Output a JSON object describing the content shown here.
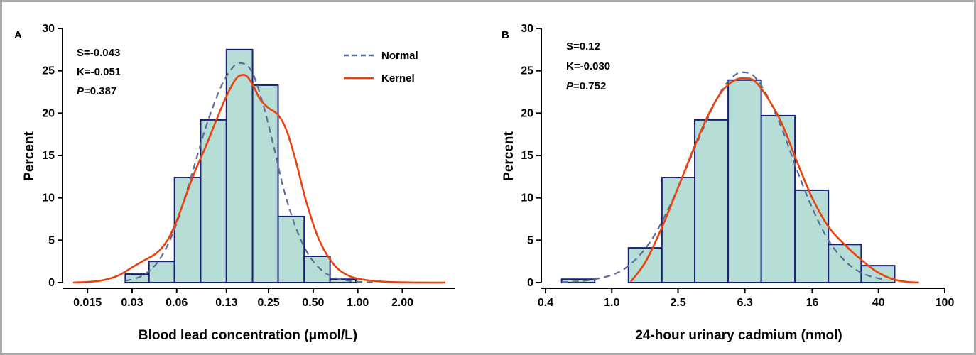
{
  "chart_data": [
    {
      "type": "histogram",
      "panel_label": "A",
      "xlabel": "Blood lead concentration (μmol/L)",
      "ylabel": "Percent",
      "x_scale": "log",
      "x_ticks": [
        0.015,
        0.03,
        0.06,
        0.13,
        0.25,
        0.5,
        1.0,
        2.0
      ],
      "x_tick_labels": [
        "0.015",
        "0.03",
        "0.06",
        "0.13",
        "0.25",
        "0.50",
        "1.00",
        "2.00"
      ],
      "xlim": [
        0.011,
        4.5
      ],
      "ylim": [
        0,
        30
      ],
      "y_ticks": [
        0,
        5,
        10,
        15,
        20,
        25,
        30
      ],
      "bins": [
        {
          "x0": 0.027,
          "x1": 0.039,
          "value": 1.0
        },
        {
          "x0": 0.039,
          "x1": 0.058,
          "value": 2.5
        },
        {
          "x0": 0.058,
          "x1": 0.087,
          "value": 12.4
        },
        {
          "x0": 0.087,
          "x1": 0.13,
          "value": 19.2
        },
        {
          "x0": 0.13,
          "x1": 0.195,
          "value": 27.5
        },
        {
          "x0": 0.195,
          "x1": 0.29,
          "value": 23.3
        },
        {
          "x0": 0.29,
          "x1": 0.435,
          "value": 7.8
        },
        {
          "x0": 0.435,
          "x1": 0.65,
          "value": 3.1
        },
        {
          "x0": 0.65,
          "x1": 0.97,
          "value": 0.4
        }
      ],
      "curves": [
        {
          "name": "Normal",
          "color": "#5b6b9a",
          "style": "dashed",
          "x": [
            0.027,
            0.035,
            0.045,
            0.058,
            0.075,
            0.095,
            0.12,
            0.145,
            0.16,
            0.18,
            0.2,
            0.23,
            0.27,
            0.32,
            0.4,
            0.5,
            0.65,
            0.85,
            1.05,
            1.3
          ],
          "y": [
            0.2,
            0.8,
            2.5,
            6.3,
            12.5,
            18.5,
            23.2,
            25.5,
            25.9,
            25.6,
            24.3,
            21.0,
            16.2,
            10.7,
            5.6,
            2.5,
            0.8,
            0.25,
            0.08,
            0.02
          ]
        },
        {
          "name": "Kernel",
          "color": "#e8420f",
          "style": "solid",
          "x": [
            0.012,
            0.018,
            0.024,
            0.03,
            0.036,
            0.044,
            0.052,
            0.06,
            0.07,
            0.08,
            0.095,
            0.11,
            0.13,
            0.15,
            0.165,
            0.18,
            0.2,
            0.22,
            0.25,
            0.29,
            0.33,
            0.38,
            0.45,
            0.55,
            0.7,
            0.9,
            1.2,
            1.6,
            2.2,
            3.0,
            3.9
          ],
          "y": [
            0.0,
            0.2,
            0.8,
            1.8,
            2.6,
            3.5,
            5.0,
            7.3,
            10.5,
            13.2,
            16.2,
            19.0,
            22.0,
            24.0,
            24.5,
            24.3,
            23.0,
            21.6,
            20.6,
            19.8,
            18.0,
            14.5,
            9.5,
            5.0,
            2.0,
            0.7,
            0.25,
            0.08,
            0.02,
            0.0,
            0.0
          ]
        }
      ],
      "stats": [
        {
          "name": "S",
          "text": "S=-0.043"
        },
        {
          "name": "K",
          "text": "K=-0.051"
        },
        {
          "name": "P",
          "italic_prefix": "P",
          "text": "=0.387"
        }
      ],
      "legend": {
        "placement": "top-right",
        "items": [
          "Normal",
          "Kernel"
        ]
      }
    },
    {
      "type": "histogram",
      "panel_label": "B",
      "xlabel": "24-hour urinary cadmium (nmol)",
      "ylabel": "Percent",
      "x_scale": "log",
      "x_ticks": [
        0.4,
        1.0,
        2.5,
        6.3,
        16,
        40,
        100
      ],
      "x_tick_labels": [
        "0.4",
        "1.0",
        "2.5",
        "6.3",
        "16",
        "40",
        "100"
      ],
      "xlim": [
        0.4,
        100
      ],
      "ylim": [
        0,
        30
      ],
      "y_ticks": [
        0,
        5,
        10,
        15,
        20,
        25,
        30
      ],
      "bins": [
        {
          "x0": 0.5,
          "x1": 0.79,
          "value": 0.4
        },
        {
          "x0": 1.26,
          "x1": 2.0,
          "value": 4.1
        },
        {
          "x0": 2.0,
          "x1": 3.15,
          "value": 12.4
        },
        {
          "x0": 3.15,
          "x1": 5.0,
          "value": 19.2
        },
        {
          "x0": 5.0,
          "x1": 7.9,
          "value": 23.9
        },
        {
          "x0": 7.9,
          "x1": 12.6,
          "value": 19.7
        },
        {
          "x0": 12.6,
          "x1": 20.0,
          "value": 10.9
        },
        {
          "x0": 20.0,
          "x1": 31.5,
          "value": 4.5
        },
        {
          "x0": 31.5,
          "x1": 50.0,
          "value": 2.0
        }
      ],
      "curves": [
        {
          "name": "Normal",
          "color": "#5b6b9a",
          "style": "dashed",
          "x": [
            0.5,
            0.7,
            1.0,
            1.3,
            1.7,
            2.2,
            2.8,
            3.6,
            4.5,
            5.5,
            6.3,
            7.2,
            8.5,
            10.5,
            13,
            16,
            20,
            25,
            30,
            35,
            42
          ],
          "y": [
            0.05,
            0.25,
            0.9,
            2.2,
            4.8,
            8.8,
            13.5,
            18.5,
            22.5,
            24.5,
            24.8,
            24.3,
            22.2,
            18.2,
            13.2,
            8.8,
            5.0,
            2.6,
            1.4,
            0.8,
            0.4
          ]
        },
        {
          "name": "Kernel",
          "color": "#e8420f",
          "style": "solid",
          "x": [
            1.3,
            1.6,
            2.0,
            2.5,
            3.1,
            3.8,
            4.6,
            5.5,
            6.3,
            7.2,
            8.5,
            10.5,
            13,
            16,
            20,
            25,
            31,
            39,
            48,
            58,
            70
          ],
          "y": [
            0.1,
            2.5,
            6.5,
            11.2,
            15.8,
            19.8,
            22.6,
            23.9,
            24.1,
            23.8,
            22.0,
            18.8,
            14.2,
            10.0,
            6.6,
            4.5,
            2.8,
            1.3,
            0.45,
            0.1,
            0.0
          ]
        }
      ],
      "stats": [
        {
          "name": "S",
          "text": "S=0.12"
        },
        {
          "name": "K",
          "text": "K=-0.030"
        },
        {
          "name": "P",
          "italic_prefix": "P",
          "text": "=0.752"
        }
      ]
    }
  ]
}
